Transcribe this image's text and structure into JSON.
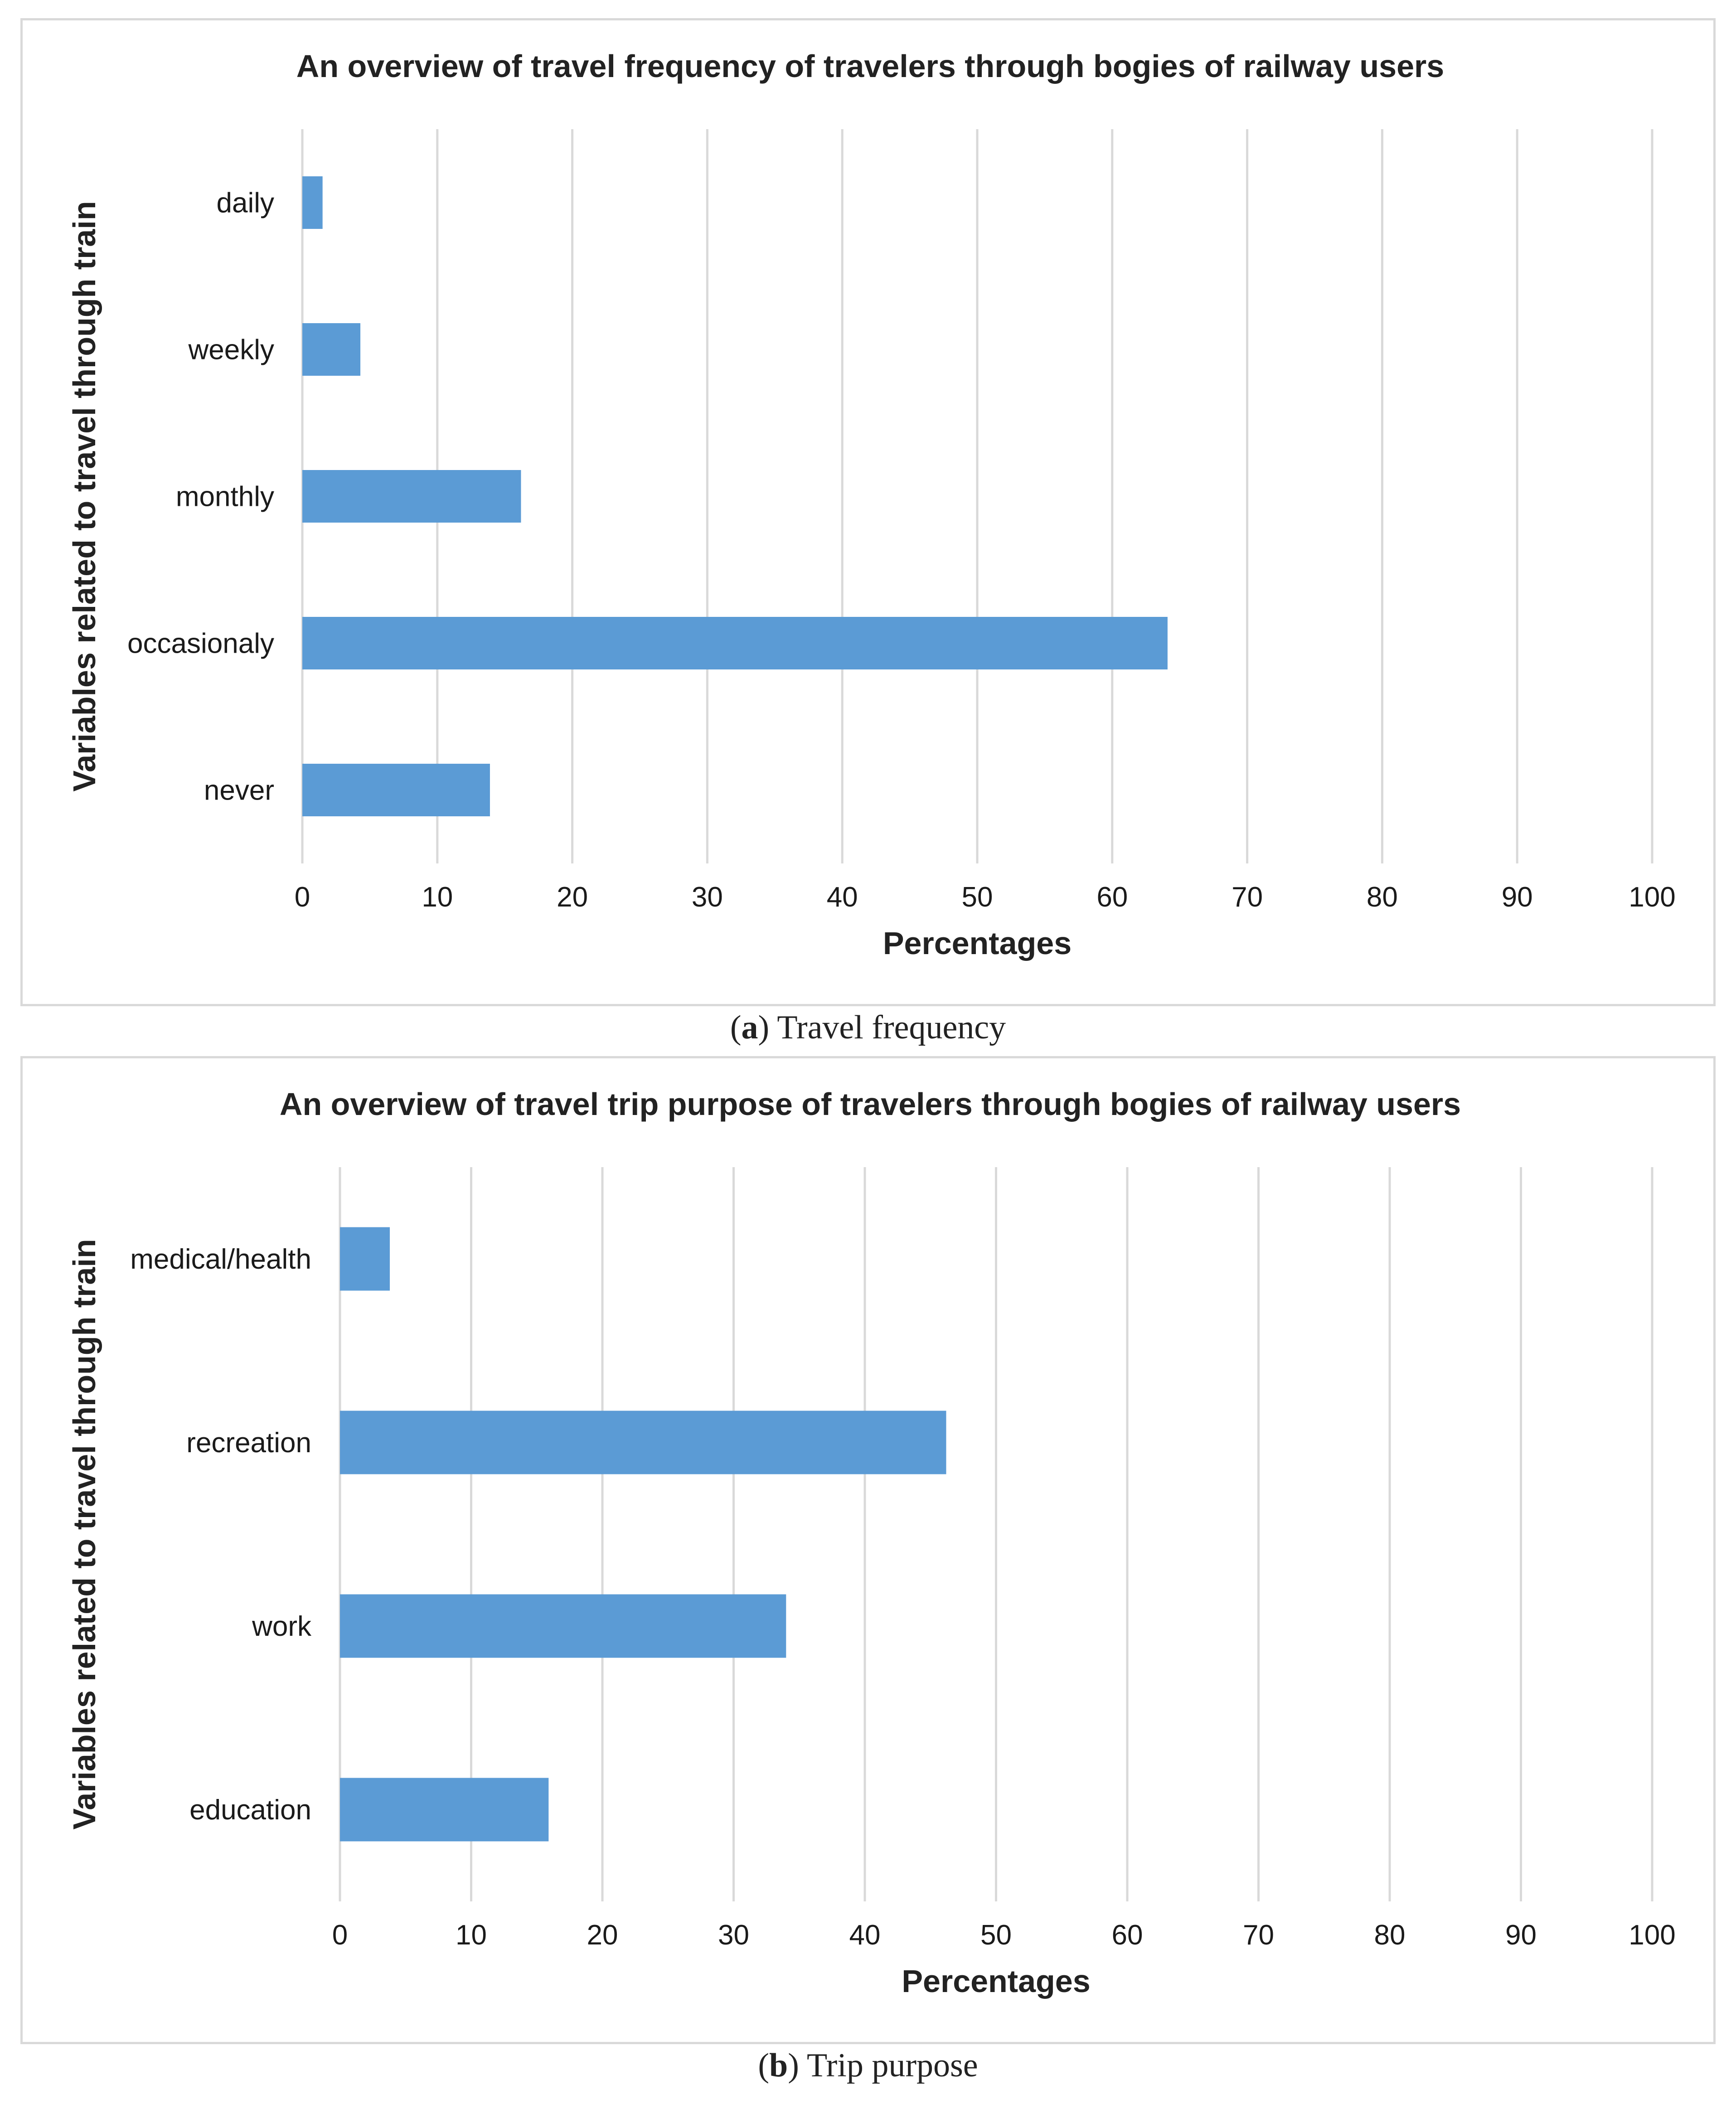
{
  "colors": {
    "bar": "#5b9bd5",
    "grid": "#d9d9d9",
    "border": "#d9d9d9"
  },
  "captions": [
    {
      "letter": "a",
      "text": "Travel frequency"
    },
    {
      "letter": "b",
      "text": "Trip purpose"
    }
  ],
  "chart_data": [
    {
      "type": "bar",
      "orientation": "horizontal",
      "title": "An overview of travel frequency of travelers through bogies of railway users",
      "xlabel": "Percentages",
      "ylabel": "Variables related to travel through train",
      "categories": [
        "daily",
        "weekly",
        "monthly",
        "occasionaly",
        "never"
      ],
      "values": [
        1.5,
        4.3,
        16.2,
        64.1,
        13.9
      ],
      "xlim": [
        0,
        100
      ],
      "xticks": [
        0,
        10,
        20,
        30,
        40,
        50,
        60,
        70,
        80,
        90,
        100
      ],
      "grid": true,
      "legend": "none"
    },
    {
      "type": "bar",
      "orientation": "horizontal",
      "title": "An overview of travel trip purpose of travelers through bogies of railway users",
      "xlabel": "Percentages",
      "ylabel": "Variables related to travel through train",
      "categories": [
        "medical/health",
        "recreation",
        "work",
        "education"
      ],
      "values": [
        3.8,
        46.2,
        34.0,
        15.9
      ],
      "xlim": [
        0,
        100
      ],
      "xticks": [
        0,
        10,
        20,
        30,
        40,
        50,
        60,
        70,
        80,
        90,
        100
      ],
      "grid": true,
      "legend": "none"
    }
  ]
}
